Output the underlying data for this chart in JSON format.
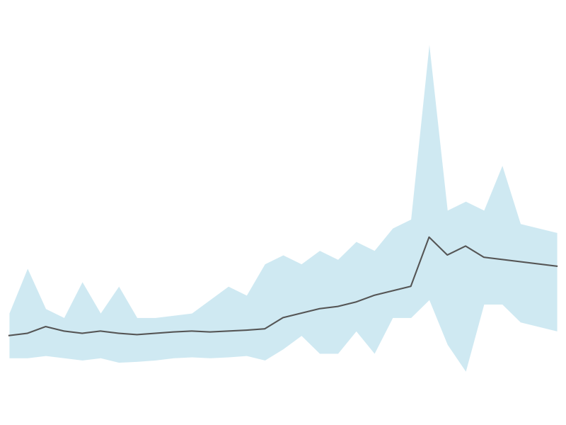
{
  "x": [
    0,
    1,
    2,
    3,
    4,
    5,
    6,
    7,
    8,
    9,
    10,
    11,
    12,
    13,
    14,
    15,
    16,
    17,
    18,
    19,
    20,
    21,
    22,
    23,
    24,
    25,
    26,
    27,
    28,
    29,
    30
  ],
  "y_mean": [
    1.0,
    1.05,
    1.2,
    1.1,
    1.05,
    1.1,
    1.05,
    1.02,
    1.05,
    1.08,
    1.1,
    1.08,
    1.1,
    1.12,
    1.15,
    1.4,
    1.5,
    1.6,
    1.65,
    1.75,
    1.9,
    2.0,
    2.1,
    3.2,
    2.8,
    3.0,
    2.75,
    2.7,
    2.65,
    2.6,
    2.55
  ],
  "y_upper": [
    1.5,
    2.5,
    1.6,
    1.4,
    2.2,
    1.5,
    2.1,
    1.4,
    1.4,
    1.45,
    1.5,
    1.8,
    2.1,
    1.9,
    2.6,
    2.8,
    2.6,
    2.9,
    2.7,
    3.1,
    2.9,
    3.4,
    3.6,
    7.5,
    3.8,
    4.0,
    3.8,
    4.8,
    3.5,
    3.4,
    3.3
  ],
  "y_lower": [
    0.5,
    0.5,
    0.55,
    0.5,
    0.45,
    0.5,
    0.4,
    0.42,
    0.45,
    0.5,
    0.52,
    0.5,
    0.52,
    0.55,
    0.45,
    0.7,
    1.0,
    0.6,
    0.6,
    1.1,
    0.6,
    1.4,
    1.4,
    1.8,
    0.8,
    0.2,
    1.7,
    1.7,
    1.3,
    1.2,
    1.1
  ],
  "line_color": "#555555",
  "fill_color": "#a8d8e8",
  "fill_alpha": 0.55,
  "background_color": "#ffffff",
  "ylim": [
    -1.0,
    8.5
  ],
  "xlim": [
    -0.5,
    30.5
  ]
}
